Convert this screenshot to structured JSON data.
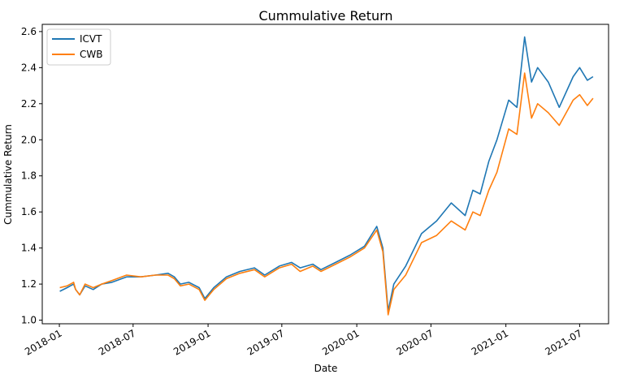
{
  "chart_data": {
    "type": "line",
    "title": "Cummulative Return",
    "xlabel": "Date",
    "ylabel": "Cummulative Return",
    "xlim": [
      "2017-11-20",
      "2021-09-10"
    ],
    "ylim": [
      0.98,
      2.64
    ],
    "x_ticks": [
      "2018-01",
      "2018-07",
      "2019-01",
      "2019-07",
      "2020-01",
      "2020-07",
      "2021-01",
      "2021-07"
    ],
    "y_ticks": [
      1.0,
      1.2,
      1.4,
      1.6,
      1.8,
      2.0,
      2.2,
      2.4,
      2.6
    ],
    "y_tick_labels": [
      "1.0",
      "1.2",
      "1.4",
      "1.6",
      "1.8",
      "2.0",
      "2.2",
      "2.4",
      "2.6"
    ],
    "grid": false,
    "legend_position": "top-left",
    "series": [
      {
        "name": "ICVT",
        "color": "#1f77b4",
        "points": [
          [
            "2018-01-02",
            1.16
          ],
          [
            "2018-01-20",
            1.18
          ],
          [
            "2018-02-05",
            1.2
          ],
          [
            "2018-02-10",
            1.17
          ],
          [
            "2018-02-20",
            1.14
          ],
          [
            "2018-03-05",
            1.19
          ],
          [
            "2018-03-25",
            1.17
          ],
          [
            "2018-04-15",
            1.2
          ],
          [
            "2018-05-10",
            1.21
          ],
          [
            "2018-06-15",
            1.24
          ],
          [
            "2018-07-20",
            1.24
          ],
          [
            "2018-08-25",
            1.25
          ],
          [
            "2018-09-25",
            1.26
          ],
          [
            "2018-10-10",
            1.24
          ],
          [
            "2018-10-25",
            1.2
          ],
          [
            "2018-11-15",
            1.21
          ],
          [
            "2018-12-10",
            1.18
          ],
          [
            "2018-12-24",
            1.12
          ],
          [
            "2019-01-15",
            1.18
          ],
          [
            "2019-02-15",
            1.24
          ],
          [
            "2019-03-20",
            1.27
          ],
          [
            "2019-04-25",
            1.29
          ],
          [
            "2019-05-20",
            1.25
          ],
          [
            "2019-06-25",
            1.3
          ],
          [
            "2019-07-25",
            1.32
          ],
          [
            "2019-08-15",
            1.29
          ],
          [
            "2019-09-15",
            1.31
          ],
          [
            "2019-10-05",
            1.28
          ],
          [
            "2019-11-10",
            1.32
          ],
          [
            "2019-12-15",
            1.36
          ],
          [
            "2020-01-20",
            1.41
          ],
          [
            "2020-02-19",
            1.52
          ],
          [
            "2020-03-05",
            1.4
          ],
          [
            "2020-03-18",
            1.05
          ],
          [
            "2020-04-01",
            1.2
          ],
          [
            "2020-04-30",
            1.3
          ],
          [
            "2020-06-08",
            1.48
          ],
          [
            "2020-07-15",
            1.55
          ],
          [
            "2020-08-20",
            1.65
          ],
          [
            "2020-09-23",
            1.58
          ],
          [
            "2020-10-12",
            1.72
          ],
          [
            "2020-10-30",
            1.7
          ],
          [
            "2020-11-20",
            1.88
          ],
          [
            "2020-12-10",
            2.0
          ],
          [
            "2021-01-08",
            2.22
          ],
          [
            "2021-01-28",
            2.18
          ],
          [
            "2021-02-16",
            2.57
          ],
          [
            "2021-03-05",
            2.32
          ],
          [
            "2021-03-20",
            2.4
          ],
          [
            "2021-04-15",
            2.32
          ],
          [
            "2021-05-12",
            2.18
          ],
          [
            "2021-06-15",
            2.35
          ],
          [
            "2021-07-01",
            2.4
          ],
          [
            "2021-07-20",
            2.33
          ],
          [
            "2021-08-03",
            2.35
          ]
        ]
      },
      {
        "name": "CWB",
        "color": "#ff7f0e",
        "points": [
          [
            "2018-01-02",
            1.18
          ],
          [
            "2018-01-20",
            1.19
          ],
          [
            "2018-02-05",
            1.21
          ],
          [
            "2018-02-10",
            1.17
          ],
          [
            "2018-02-20",
            1.14
          ],
          [
            "2018-03-05",
            1.2
          ],
          [
            "2018-03-25",
            1.18
          ],
          [
            "2018-04-15",
            1.2
          ],
          [
            "2018-05-10",
            1.22
          ],
          [
            "2018-06-15",
            1.25
          ],
          [
            "2018-07-20",
            1.24
          ],
          [
            "2018-08-25",
            1.25
          ],
          [
            "2018-09-25",
            1.25
          ],
          [
            "2018-10-10",
            1.23
          ],
          [
            "2018-10-25",
            1.19
          ],
          [
            "2018-11-15",
            1.2
          ],
          [
            "2018-12-10",
            1.17
          ],
          [
            "2018-12-24",
            1.11
          ],
          [
            "2019-01-15",
            1.17
          ],
          [
            "2019-02-15",
            1.23
          ],
          [
            "2019-03-20",
            1.26
          ],
          [
            "2019-04-25",
            1.28
          ],
          [
            "2019-05-20",
            1.24
          ],
          [
            "2019-06-25",
            1.29
          ],
          [
            "2019-07-25",
            1.31
          ],
          [
            "2019-08-15",
            1.27
          ],
          [
            "2019-09-15",
            1.3
          ],
          [
            "2019-10-05",
            1.27
          ],
          [
            "2019-11-10",
            1.31
          ],
          [
            "2019-12-15",
            1.35
          ],
          [
            "2020-01-20",
            1.4
          ],
          [
            "2020-02-19",
            1.5
          ],
          [
            "2020-03-05",
            1.38
          ],
          [
            "2020-03-18",
            1.03
          ],
          [
            "2020-04-01",
            1.17
          ],
          [
            "2020-04-30",
            1.25
          ],
          [
            "2020-06-08",
            1.43
          ],
          [
            "2020-07-15",
            1.47
          ],
          [
            "2020-08-20",
            1.55
          ],
          [
            "2020-09-23",
            1.5
          ],
          [
            "2020-10-12",
            1.6
          ],
          [
            "2020-10-30",
            1.58
          ],
          [
            "2020-11-20",
            1.72
          ],
          [
            "2020-12-10",
            1.82
          ],
          [
            "2021-01-08",
            2.06
          ],
          [
            "2021-01-28",
            2.03
          ],
          [
            "2021-02-16",
            2.37
          ],
          [
            "2021-03-05",
            2.12
          ],
          [
            "2021-03-20",
            2.2
          ],
          [
            "2021-04-15",
            2.15
          ],
          [
            "2021-05-12",
            2.08
          ],
          [
            "2021-06-15",
            2.22
          ],
          [
            "2021-07-01",
            2.25
          ],
          [
            "2021-07-20",
            2.19
          ],
          [
            "2021-08-03",
            2.23
          ]
        ]
      }
    ]
  }
}
